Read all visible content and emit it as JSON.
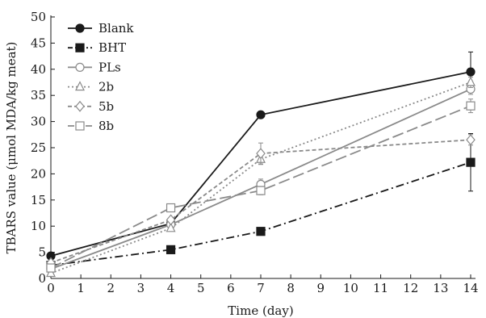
{
  "chart_data": {
    "type": "line",
    "xlabel": "Time (day)",
    "ylabel": "TBARS value (μmol MDA/kg meat)",
    "xlim": [
      0,
      14
    ],
    "ylim": [
      0,
      50
    ],
    "x_ticks": [
      0,
      1,
      2,
      3,
      4,
      5,
      6,
      7,
      8,
      9,
      10,
      11,
      12,
      13,
      14
    ],
    "y_ticks": [
      0,
      5,
      10,
      15,
      20,
      25,
      30,
      35,
      40,
      45,
      50
    ],
    "grid": false,
    "legend_position": "top-left",
    "x": [
      0,
      4,
      7,
      14
    ],
    "series": [
      {
        "name": "Blank",
        "values": [
          4.3,
          10.5,
          31.3,
          39.5
        ],
        "error": [
          0,
          0,
          0,
          3.8
        ],
        "color": "#1a1a1a",
        "marker": "filled-circle",
        "line_style": "solid"
      },
      {
        "name": "BHT",
        "values": [
          2.5,
          5.5,
          9.0,
          22.2
        ],
        "error": [
          0,
          0,
          0,
          5.5
        ],
        "color": "#1a1a1a",
        "marker": "filled-square",
        "line_style": "dash-dot"
      },
      {
        "name": "PLs",
        "values": [
          1.8,
          10.3,
          18.0,
          36.2
        ],
        "error": [
          0,
          0,
          1.0,
          1.0
        ],
        "color": "#8a8a8a",
        "marker": "open-circle",
        "line_style": "solid"
      },
      {
        "name": "2b",
        "values": [
          1.0,
          9.6,
          22.8,
          37.5
        ],
        "error": [
          0,
          0,
          1.0,
          1.0
        ],
        "color": "#8a8a8a",
        "marker": "open-triangle",
        "line_style": "dotted"
      },
      {
        "name": "5b",
        "values": [
          3.0,
          11.2,
          23.9,
          26.5
        ],
        "error": [
          0,
          0,
          2.0,
          1.0
        ],
        "color": "#8a8a8a",
        "marker": "open-diamond",
        "line_style": "short-dash"
      },
      {
        "name": "8b",
        "values": [
          2.0,
          13.5,
          16.8,
          33.0
        ],
        "error": [
          0,
          0,
          0.8,
          1.3
        ],
        "color": "#8a8a8a",
        "marker": "open-square",
        "line_style": "long-dash"
      }
    ]
  }
}
